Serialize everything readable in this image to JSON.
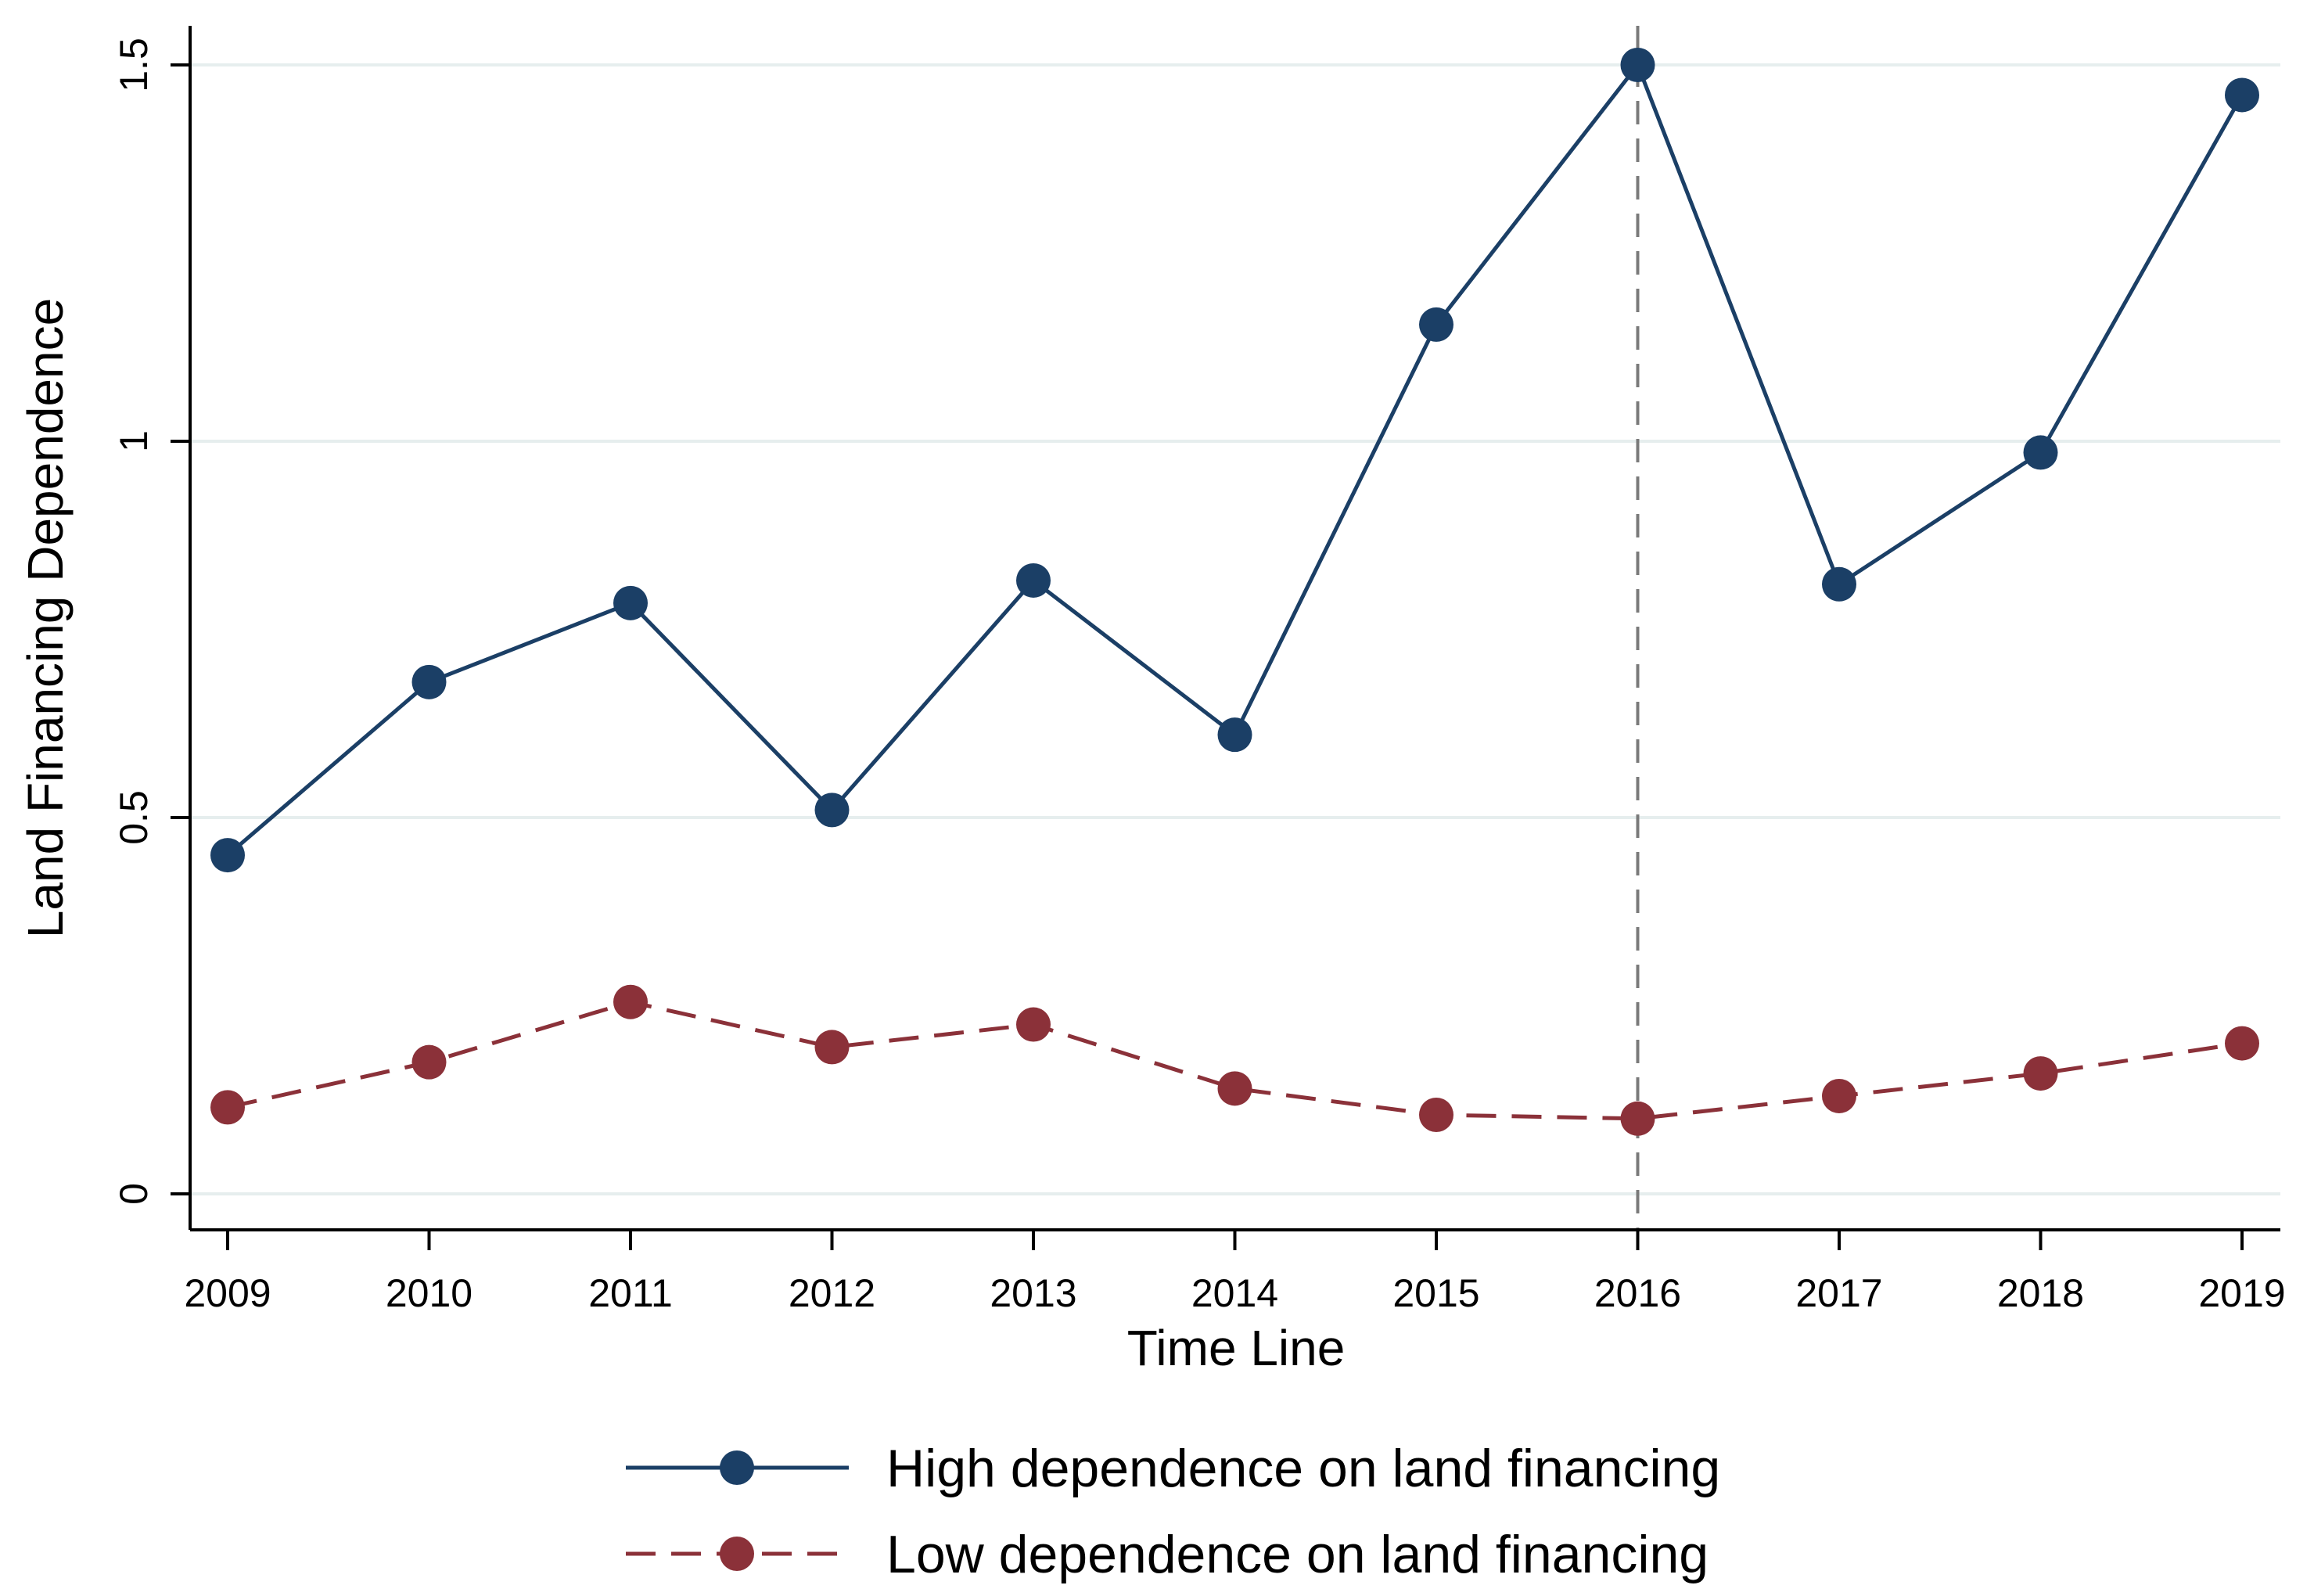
{
  "chart_data": {
    "type": "line",
    "title": "",
    "xlabel": "Time Line",
    "ylabel": "Land Financing Dependence",
    "categories": [
      "2009",
      "2010",
      "2011",
      "2012",
      "2013",
      "2014",
      "2015",
      "2016",
      "2017",
      "2018",
      "2019"
    ],
    "y_ticks": [
      "0",
      "0.5",
      "1",
      "1.5"
    ],
    "ylim": [
      0,
      1.5
    ],
    "grid": true,
    "reference_line": {
      "x": "2016",
      "style": "dashed"
    },
    "legend_position": "bottom",
    "series": [
      {
        "name": "High dependence on land financing",
        "line_style": "solid",
        "color": "#1b3f66",
        "values": [
          0.45,
          0.68,
          0.785,
          0.51,
          0.815,
          0.61,
          1.155,
          1.5,
          0.81,
          0.985,
          1.46
        ]
      },
      {
        "name": "Low dependence on land financing",
        "line_style": "dashed",
        "color": "#8b3139",
        "values": [
          0.115,
          0.175,
          0.255,
          0.195,
          0.225,
          0.14,
          0.105,
          0.1,
          0.13,
          0.16,
          0.2
        ]
      }
    ]
  }
}
